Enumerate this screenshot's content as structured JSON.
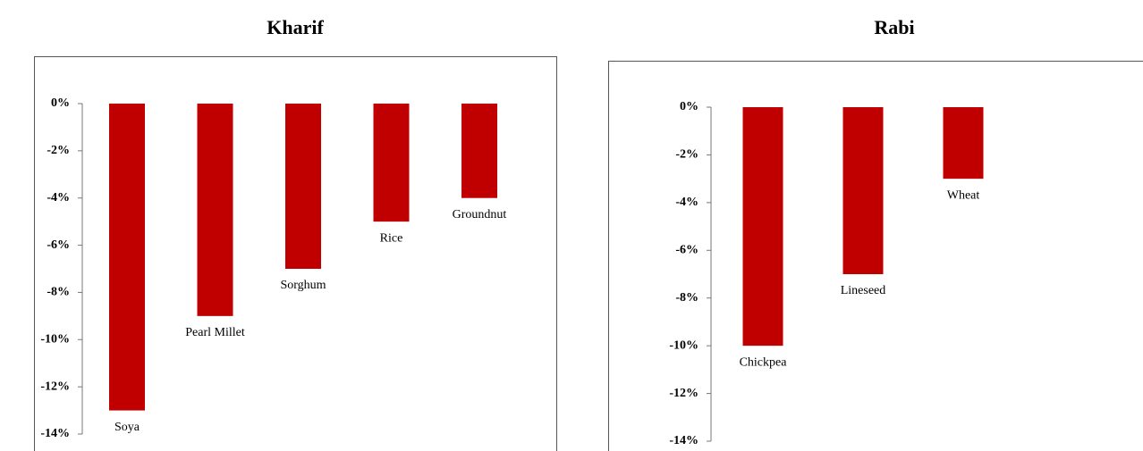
{
  "chart_data": [
    {
      "type": "bar",
      "title": "Kharif",
      "categories": [
        "Soya",
        "Pearl Millet",
        "Sorghum",
        "Rice",
        "Groundnut"
      ],
      "values": [
        -13,
        -9,
        -7,
        -5,
        -4
      ],
      "color": "#c00000",
      "ylim": [
        -14,
        0
      ],
      "yticks": [
        {
          "value": 0,
          "label": "0%"
        },
        {
          "value": -2,
          "label": "-2%"
        },
        {
          "value": -4,
          "label": "-4%"
        },
        {
          "value": -6,
          "label": "-6%"
        },
        {
          "value": -8,
          "label": "-8%"
        },
        {
          "value": -10,
          "label": "-10%"
        },
        {
          "value": -12,
          "label": "-12%"
        },
        {
          "value": -14,
          "label": "-14%"
        }
      ]
    },
    {
      "type": "bar",
      "title": "Rabi",
      "categories": [
        "Chickpea",
        "Lineseed",
        "Wheat"
      ],
      "values": [
        -10,
        -7,
        -3
      ],
      "color": "#c00000",
      "ylim": [
        -14,
        0
      ],
      "yticks": [
        {
          "value": 0,
          "label": "0%"
        },
        {
          "value": -2,
          "label": "-2%"
        },
        {
          "value": -4,
          "label": "-4%"
        },
        {
          "value": -6,
          "label": "-6%"
        },
        {
          "value": -8,
          "label": "-8%"
        },
        {
          "value": -10,
          "label": "-10%"
        },
        {
          "value": -12,
          "label": "-12%"
        },
        {
          "value": -14,
          "label": "-14%"
        }
      ]
    }
  ]
}
